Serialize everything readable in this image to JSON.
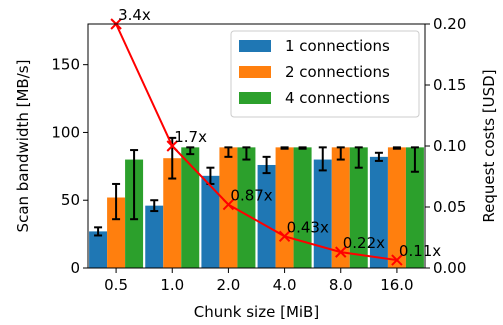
{
  "chart_data": {
    "type": "bar",
    "title": "",
    "xlabel": "Chunk size [MiB]",
    "ylabel": "Scan bandwidth [MB/s]",
    "ylabel_right": "Request costs [USD]",
    "categories": [
      "0.5",
      "1.0",
      "2.0",
      "4.0",
      "8.0",
      "16.0"
    ],
    "ylim": [
      0,
      180
    ],
    "yticks": [
      "0",
      "50",
      "100",
      "150"
    ],
    "ylim_right": [
      0,
      0.2
    ],
    "yticks_right": [
      "0.00",
      "0.05",
      "0.10",
      "0.15",
      "0.20"
    ],
    "legend_position": "top-right",
    "grid": false,
    "series": [
      {
        "name": "1 connections",
        "color": "#1f77b4",
        "values": [
          27,
          46,
          68,
          76,
          80,
          82
        ],
        "err_low": [
          24,
          42,
          62,
          70,
          72,
          79
        ],
        "err_high": [
          30,
          50,
          74,
          82,
          89,
          85
        ]
      },
      {
        "name": "2 connections",
        "color": "#ff7f0e",
        "values": [
          52,
          81,
          89,
          89,
          89,
          89
        ],
        "err_low": [
          36,
          66,
          82,
          88,
          80,
          88
        ],
        "err_high": [
          62,
          96,
          89,
          89,
          89,
          89
        ]
      },
      {
        "name": "4 connections",
        "color": "#2ca02c",
        "values": [
          80,
          89,
          89,
          89,
          89,
          89
        ],
        "err_low": [
          36,
          84,
          80,
          88,
          74,
          71
        ],
        "err_high": [
          87,
          89,
          89,
          89,
          89,
          89
        ]
      }
    ],
    "cost_line": {
      "color": "#ff0000",
      "values": [
        0.2,
        0.1,
        0.052,
        0.026,
        0.013,
        0.0065
      ],
      "labels": [
        "3.4x",
        "1.7x",
        "0.87x",
        "0.43x",
        "0.22x",
        "0.11x"
      ]
    }
  }
}
